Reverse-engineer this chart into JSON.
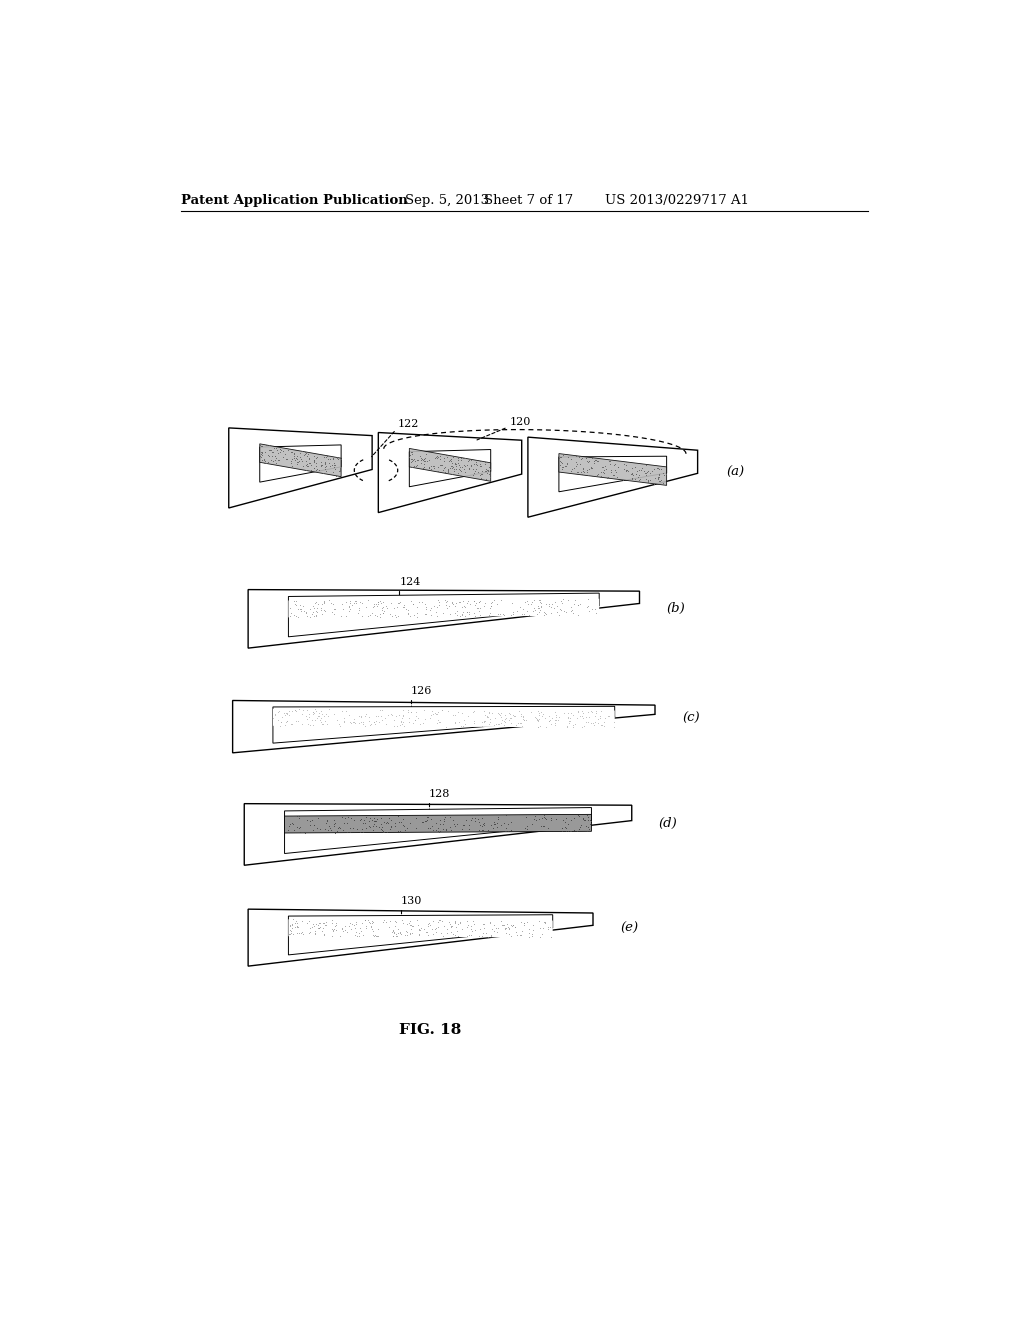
{
  "background_color": "#ffffff",
  "header_left": "Patent Application Publication",
  "header_mid1": "Sep. 5, 2013",
  "header_mid2": "Sheet 7 of 17",
  "header_right": "US 2013/0229717 A1",
  "figure_label": "FIG. 18",
  "subfig_labels": [
    "(a)",
    "(b)",
    "(c)",
    "(d)",
    "(e)"
  ],
  "lc": "#000000",
  "gray_dark": "#999999",
  "gray_mid": "#bbbbbb",
  "gray_light": "#dddddd"
}
